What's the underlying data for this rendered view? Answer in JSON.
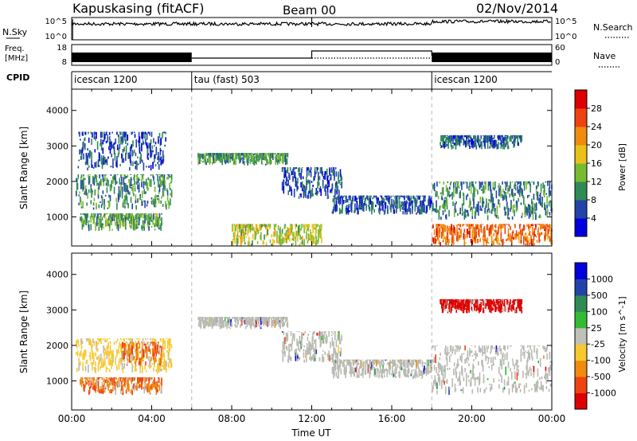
{
  "header": {
    "station": "Kapuskasing (fitACF)",
    "beam": "Beam 00",
    "date": "02/Nov/2014"
  },
  "noise_panel": {
    "left_label": "N.Sky",
    "left_ticks": [
      "10^5",
      "10^0"
    ],
    "right_label": "N.Search",
    "right_ticks": [
      "10^5",
      "10^0"
    ]
  },
  "freq_panel": {
    "left_label_1": "Freq.",
    "left_label_2": "[MHz]",
    "left_ticks": [
      "18",
      "8"
    ],
    "right_label": "Nave",
    "right_ticks": [
      "60",
      "0"
    ]
  },
  "cpid_panel": {
    "label": "CPID",
    "modes": [
      {
        "name": "icescan 1200",
        "start_hour": 0
      },
      {
        "name": "tau (fast) 503",
        "start_hour": 6
      },
      {
        "name": "icescan 1200",
        "start_hour": 18
      }
    ]
  },
  "colors": {
    "power_scale": [
      "#0000dd",
      "#2244aa",
      "#2f8a55",
      "#77bb33",
      "#e8c21a",
      "#f08a10",
      "#ee4410",
      "#dd0000"
    ],
    "velocity_scale": [
      "#dd0000",
      "#ee4410",
      "#f08a10",
      "#f8c830",
      "#c0c0b8",
      "#33bb33",
      "#2f8a55",
      "#2244aa",
      "#0000dd"
    ],
    "groundscatter": "#b9b9b3"
  },
  "chart_data": [
    {
      "type": "heatmap",
      "name": "power",
      "xlabel": "",
      "ylabel": "Slant Range [km]",
      "xlim": [
        0,
        24
      ],
      "ylim": [
        180,
        4600
      ],
      "yticks": [
        "1000",
        "2000",
        "3000",
        "4000"
      ],
      "colorbar": {
        "label": "Power [dB]",
        "range": [
          0,
          32
        ],
        "ticks": [
          "4",
          "8",
          "12",
          "16",
          "20",
          "24",
          "28"
        ]
      },
      "regions": [
        {
          "t0": 0.2,
          "t1": 5.0,
          "r0": 1200,
          "r1": 2200,
          "level": 10
        },
        {
          "t0": 0.3,
          "t1": 4.7,
          "r0": 2300,
          "r1": 3400,
          "level": 6
        },
        {
          "t0": 0.4,
          "t1": 4.5,
          "r0": 600,
          "r1": 1100,
          "level": 12
        },
        {
          "t0": 6.3,
          "t1": 10.8,
          "r0": 2450,
          "r1": 2800,
          "level": 11
        },
        {
          "t0": 10.5,
          "t1": 13.5,
          "r0": 1500,
          "r1": 2400,
          "level": 6
        },
        {
          "t0": 13.0,
          "t1": 18.0,
          "r0": 1050,
          "r1": 1600,
          "level": 7
        },
        {
          "t0": 8.0,
          "t1": 12.5,
          "r0": 180,
          "r1": 800,
          "level": 16
        },
        {
          "t0": 18.0,
          "t1": 24.0,
          "r0": 900,
          "r1": 2000,
          "level": 9
        },
        {
          "t0": 18.0,
          "t1": 24.0,
          "r0": 180,
          "r1": 800,
          "level": 24
        },
        {
          "t0": 18.4,
          "t1": 22.5,
          "r0": 2900,
          "r1": 3300,
          "level": 7
        }
      ]
    },
    {
      "type": "heatmap",
      "name": "velocity",
      "xlabel": "Time UT",
      "ylabel": "Slant Range [km]",
      "xlim": [
        0,
        24
      ],
      "ylim": [
        180,
        4600
      ],
      "xticks": [
        "00:00",
        "04:00",
        "08:00",
        "12:00",
        "16:00",
        "20:00",
        "00:00"
      ],
      "yticks": [
        "1000",
        "2000",
        "3000",
        "4000"
      ],
      "colorbar": {
        "label": "Velocity [m s^-1]",
        "ticks": [
          "1000",
          "500",
          "100",
          "25",
          "-25",
          "-100",
          "-500",
          "-1000"
        ]
      },
      "regions": [
        {
          "t0": 0.2,
          "t1": 5.0,
          "r0": 1200,
          "r1": 2200,
          "value": -60
        },
        {
          "t0": 2.5,
          "t1": 4.5,
          "r0": 1400,
          "r1": 2100,
          "value": -300
        },
        {
          "t0": 0.4,
          "t1": 4.5,
          "r0": 600,
          "r1": 1100,
          "value": -200
        },
        {
          "t0": 6.3,
          "t1": 10.8,
          "r0": 2450,
          "r1": 2800,
          "value": 0
        },
        {
          "t0": 10.5,
          "t1": 13.5,
          "r0": 1500,
          "r1": 2400,
          "value": 0
        },
        {
          "t0": 13.0,
          "t1": 18.0,
          "r0": 1050,
          "r1": 1600,
          "value": 0
        },
        {
          "t0": 18.0,
          "t1": 24.0,
          "r0": 600,
          "r1": 2000,
          "value": 0
        },
        {
          "t0": 18.4,
          "t1": 22.5,
          "r0": 2900,
          "r1": 3300,
          "value": -700
        }
      ]
    }
  ],
  "xaxis_title": "Time UT"
}
